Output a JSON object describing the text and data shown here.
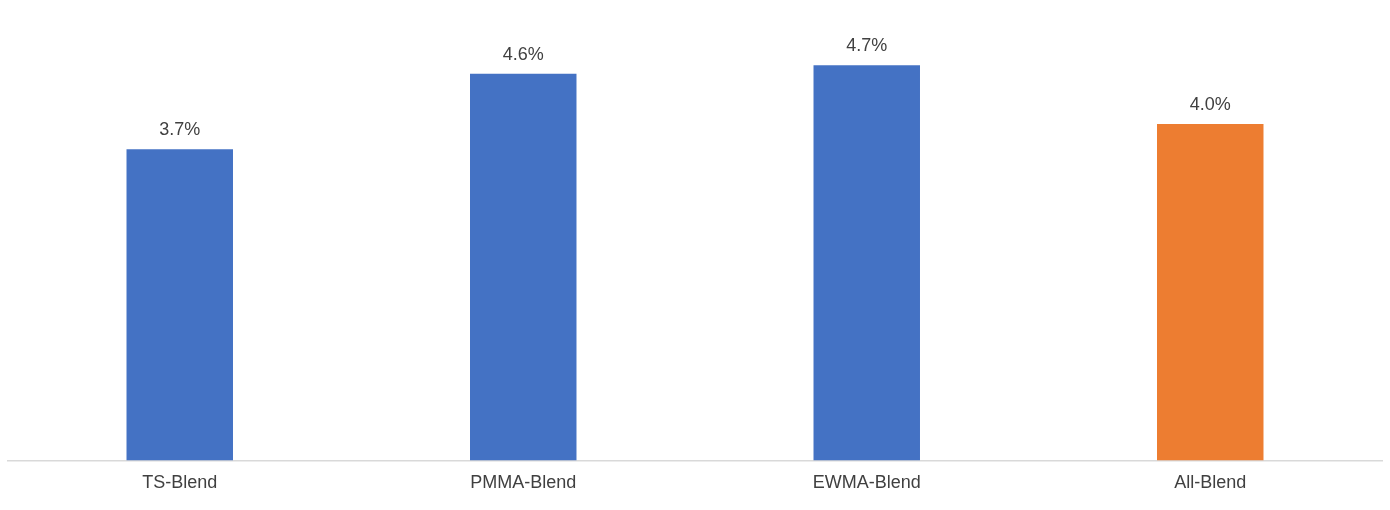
{
  "chart_data": {
    "type": "bar",
    "categories": [
      "TS-Blend",
      "PMMA-Blend",
      "EWMA-Blend",
      "All-Blend"
    ],
    "values": [
      3.7,
      4.6,
      4.7,
      4.0
    ],
    "colors": [
      "#4472c4",
      "#4472c4",
      "#4472c4",
      "#ed7d31"
    ],
    "value_labels": [
      "3.7%",
      "4.6%",
      "4.7%",
      "4.0%"
    ],
    "grid": false,
    "legend": false,
    "tick_labels": "x"
  }
}
